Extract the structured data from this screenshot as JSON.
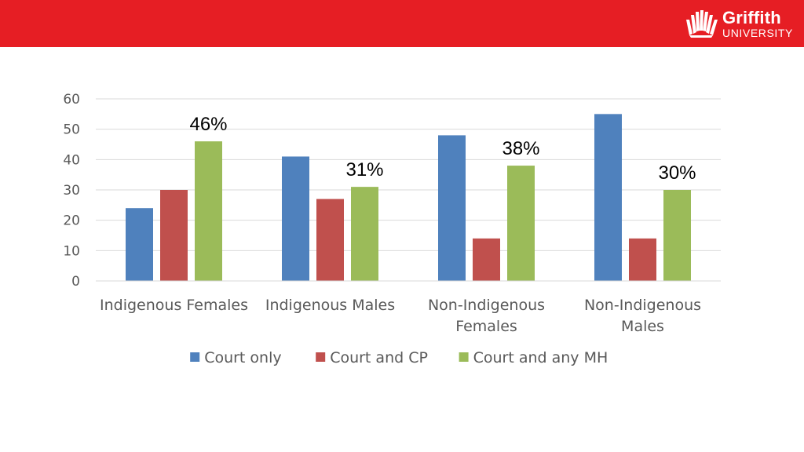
{
  "header": {
    "brand_color": "#e61e24",
    "logo": {
      "name": "Griffith",
      "subtitle": "UNIVERSITY",
      "icon": "griffith-logo-icon"
    }
  },
  "chart_data": {
    "type": "bar",
    "categories": [
      "Indigenous Females",
      "Indigenous Males",
      "Non-Indigenous Females",
      "Non-Indigenous Males"
    ],
    "category_label_lines": [
      [
        "Indigenous Females"
      ],
      [
        "Indigenous Males"
      ],
      [
        "Non-Indigenous",
        "Females"
      ],
      [
        "Non-Indigenous",
        "Males"
      ]
    ],
    "series": [
      {
        "name": "Court only",
        "color": "#4f81bd",
        "values": [
          24,
          41,
          48,
          55
        ]
      },
      {
        "name": "Court and CP",
        "color": "#c0504d",
        "values": [
          30,
          27,
          14,
          14
        ]
      },
      {
        "name": "Court and any MH",
        "color": "#9bbb59",
        "values": [
          46,
          31,
          38,
          30
        ]
      }
    ],
    "annotations": [
      "46%",
      "31%",
      "38%",
      "30%"
    ],
    "annotation_series": 2,
    "yticks": [
      0,
      10,
      20,
      30,
      40,
      50,
      60
    ],
    "ylim": [
      0,
      60
    ],
    "grid": true,
    "legend_position": "bottom"
  }
}
